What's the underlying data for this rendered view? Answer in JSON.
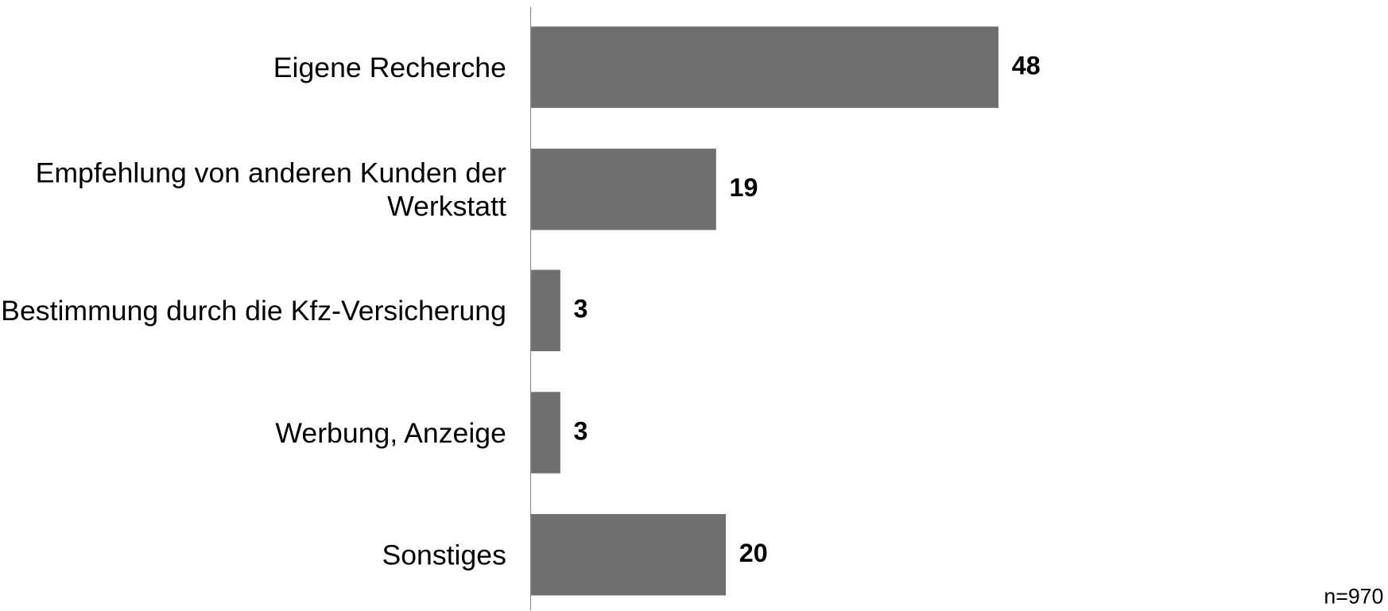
{
  "chart_data": {
    "type": "barh",
    "categories": [
      "Eigene Recherche",
      "Empfehlung von anderen Kunden der Werkstatt",
      "Bestimmung durch die Kfz-Versicherung",
      "Werbung, Anzeige",
      "Sonstiges"
    ],
    "values": [
      48,
      19,
      3,
      3,
      20
    ],
    "color": "#6f6f70",
    "note": "n=970"
  }
}
